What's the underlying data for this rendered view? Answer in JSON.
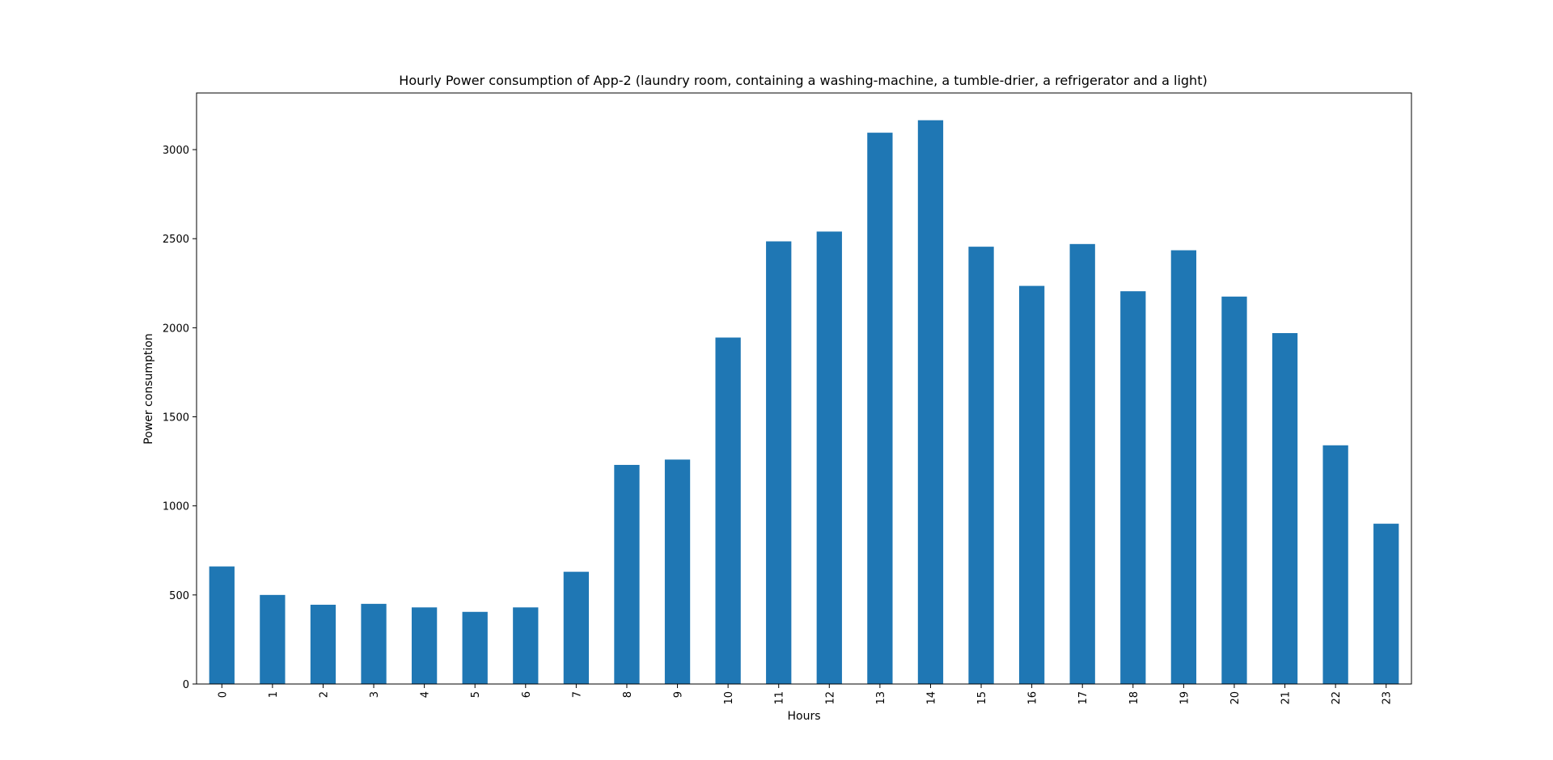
{
  "chart_data": {
    "type": "bar",
    "title": "Hourly Power consumption of App-2 (laundry room, containing a washing-machine, a tumble-drier, a refrigerator and a light)",
    "xlabel": "Hours",
    "ylabel": "Power consumption",
    "categories": [
      "0",
      "1",
      "2",
      "3",
      "4",
      "5",
      "6",
      "7",
      "8",
      "9",
      "10",
      "11",
      "12",
      "13",
      "14",
      "15",
      "16",
      "17",
      "18",
      "19",
      "20",
      "21",
      "22",
      "23"
    ],
    "values": [
      660,
      500,
      445,
      450,
      430,
      405,
      430,
      630,
      1230,
      1260,
      1945,
      2485,
      2540,
      3095,
      3165,
      2455,
      2235,
      2470,
      2205,
      2435,
      2175,
      1970,
      1340,
      900
    ],
    "ylim": [
      0,
      3318
    ],
    "yticks": [
      0,
      500,
      1000,
      1500,
      2000,
      2500,
      3000
    ],
    "bar_color": "#1f77b4",
    "grid": false,
    "legend": "none",
    "xtick_rotation": "vertical"
  }
}
